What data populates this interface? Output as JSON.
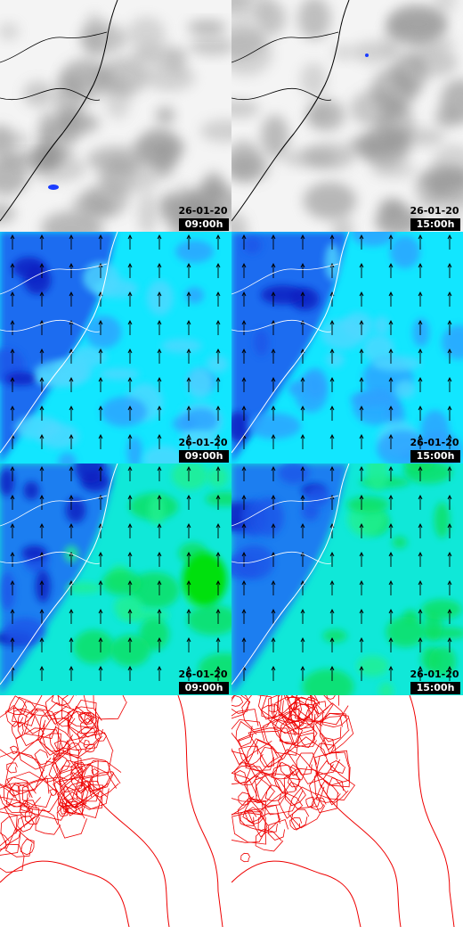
{
  "rows": [
    [
      {
        "date": "26-01-20",
        "time": "09:00h"
      },
      {
        "date": "26-01-20",
        "time": "15:00h"
      }
    ],
    [
      {
        "date": "26-01-20",
        "time": "09:00h"
      },
      {
        "date": "26-01-20",
        "time": "15:00h"
      }
    ],
    [
      {
        "date": "26-01-20",
        "time": "09:00h"
      },
      {
        "date": "26-01-20",
        "time": "15:00h"
      }
    ]
  ]
}
